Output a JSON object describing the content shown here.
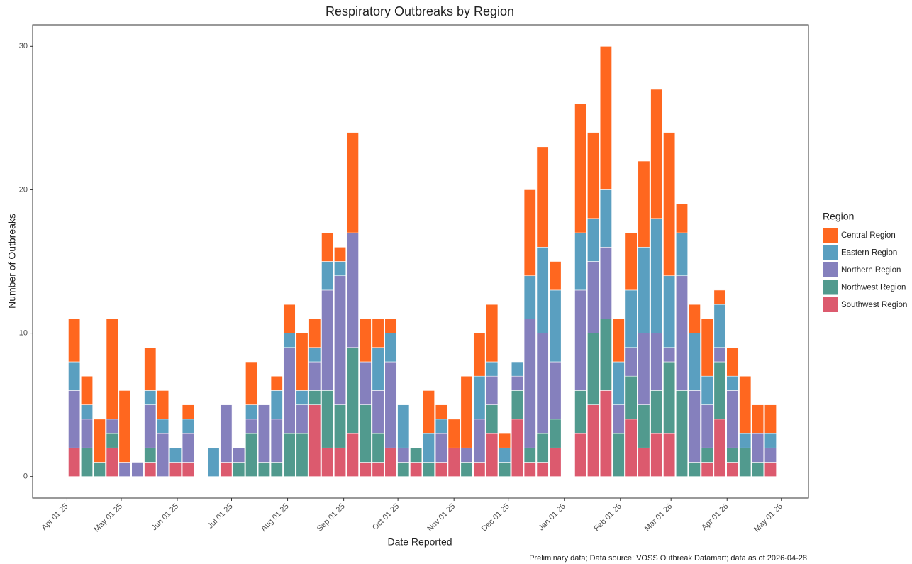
{
  "chart_data": {
    "type": "stacked_bar",
    "title": "Respiratory Outbreaks by Region",
    "x_label": "Date Reported",
    "y_label": "Number of Outbreaks",
    "caption": "Preliminary data; Data source: VOSS Outbreak Datamart; data as of 2026-04-28",
    "legend_title": "Region",
    "legend_position": "right",
    "grid": false,
    "x": [
      "2025-04-05",
      "2025-04-12",
      "2025-04-19",
      "2025-04-26",
      "2025-05-03",
      "2025-05-10",
      "2025-05-17",
      "2025-05-24",
      "2025-05-31",
      "2025-06-07",
      "2025-06-14",
      "2025-06-21",
      "2025-06-28",
      "2025-07-05",
      "2025-07-12",
      "2025-07-19",
      "2025-07-26",
      "2025-08-02",
      "2025-08-09",
      "2025-08-16",
      "2025-08-23",
      "2025-08-30",
      "2025-09-06",
      "2025-09-13",
      "2025-09-20",
      "2025-09-27",
      "2025-10-04",
      "2025-10-11",
      "2025-10-18",
      "2025-10-25",
      "2025-11-01",
      "2025-11-08",
      "2025-11-15",
      "2025-11-22",
      "2025-11-29",
      "2025-12-06",
      "2025-12-13",
      "2025-12-20",
      "2025-12-27",
      "2026-01-03",
      "2026-01-10",
      "2026-01-17",
      "2026-01-24",
      "2026-01-31",
      "2026-02-07",
      "2026-02-14",
      "2026-02-21",
      "2026-02-28",
      "2026-03-07",
      "2026-03-14",
      "2026-03-21",
      "2026-03-28",
      "2026-04-04",
      "2026-04-11",
      "2026-04-18",
      "2026-04-25"
    ],
    "xlim": [
      "2025-03-13",
      "2026-05-16"
    ],
    "xticks": [
      {
        "value": "2025-04-01",
        "label": "Apr 01 25"
      },
      {
        "value": "2025-05-01",
        "label": "May 01 25"
      },
      {
        "value": "2025-06-01",
        "label": "Jun 01 25"
      },
      {
        "value": "2025-07-01",
        "label": "Jul 01 25"
      },
      {
        "value": "2025-08-01",
        "label": "Aug 01 25"
      },
      {
        "value": "2025-09-01",
        "label": "Sep 01 25"
      },
      {
        "value": "2025-10-01",
        "label": "Oct 01 25"
      },
      {
        "value": "2025-11-01",
        "label": "Nov 01 25"
      },
      {
        "value": "2025-12-01",
        "label": "Dec 01 25"
      },
      {
        "value": "2026-01-01",
        "label": "Jan 01 26"
      },
      {
        "value": "2026-02-01",
        "label": "Feb 01 26"
      },
      {
        "value": "2026-03-01",
        "label": "Mar 01 26"
      },
      {
        "value": "2026-04-01",
        "label": "Apr 01 26"
      },
      {
        "value": "2026-05-01",
        "label": "May 01 26"
      }
    ],
    "ylim": [
      -1.5,
      31.5
    ],
    "yticks": [
      0,
      10,
      20,
      30
    ],
    "series": [
      {
        "name": "Central Region",
        "color": "#ff671f",
        "values": [
          3,
          2,
          3,
          7,
          5,
          0,
          3,
          2,
          0,
          1,
          0,
          0,
          0,
          0,
          3,
          0,
          1,
          2,
          4,
          2,
          2,
          1,
          7,
          3,
          2,
          1,
          0,
          0,
          3,
          1,
          2,
          5,
          3,
          4,
          1,
          0,
          6,
          7,
          2,
          0,
          9,
          6,
          10,
          3,
          4,
          6,
          9,
          10,
          2,
          2,
          4,
          1,
          2,
          4,
          2,
          2
        ]
      },
      {
        "name": "Eastern Region",
        "color": "#5a9fc0",
        "values": [
          2,
          1,
          0,
          0,
          0,
          0,
          1,
          1,
          1,
          1,
          0,
          2,
          0,
          0,
          1,
          0,
          2,
          1,
          1,
          1,
          2,
          1,
          0,
          0,
          3,
          2,
          3,
          0,
          2,
          1,
          0,
          0,
          3,
          1,
          1,
          1,
          3,
          6,
          5,
          0,
          4,
          3,
          4,
          3,
          4,
          6,
          8,
          5,
          3,
          4,
          2,
          3,
          1,
          1,
          0,
          1
        ]
      },
      {
        "name": "Northern Region",
        "color": "#8580bd",
        "values": [
          4,
          2,
          0,
          1,
          1,
          1,
          3,
          3,
          0,
          2,
          0,
          0,
          4,
          1,
          1,
          4,
          3,
          6,
          2,
          2,
          7,
          9,
          8,
          3,
          3,
          6,
          1,
          0,
          0,
          2,
          0,
          1,
          3,
          2,
          0,
          1,
          9,
          7,
          4,
          0,
          7,
          5,
          5,
          2,
          2,
          5,
          4,
          1,
          8,
          5,
          3,
          1,
          4,
          0,
          2,
          1
        ]
      },
      {
        "name": "Northwest Region",
        "color": "#519a8e",
        "values": [
          0,
          2,
          1,
          1,
          0,
          0,
          1,
          0,
          0,
          0,
          0,
          0,
          0,
          1,
          3,
          1,
          1,
          3,
          3,
          1,
          4,
          3,
          6,
          4,
          2,
          0,
          1,
          1,
          1,
          0,
          0,
          1,
          0,
          2,
          1,
          2,
          1,
          2,
          2,
          0,
          3,
          5,
          5,
          3,
          3,
          3,
          3,
          5,
          6,
          1,
          1,
          4,
          1,
          2,
          1,
          0
        ]
      },
      {
        "name": "Southwest Region",
        "color": "#dc5a6e",
        "values": [
          2,
          0,
          0,
          2,
          0,
          0,
          1,
          0,
          1,
          1,
          0,
          0,
          1,
          0,
          0,
          0,
          0,
          0,
          0,
          5,
          2,
          2,
          3,
          1,
          1,
          2,
          0,
          1,
          0,
          1,
          2,
          0,
          1,
          3,
          0,
          4,
          1,
          1,
          2,
          0,
          3,
          5,
          6,
          0,
          4,
          2,
          3,
          3,
          0,
          0,
          1,
          4,
          1,
          0,
          0,
          1
        ]
      }
    ]
  }
}
